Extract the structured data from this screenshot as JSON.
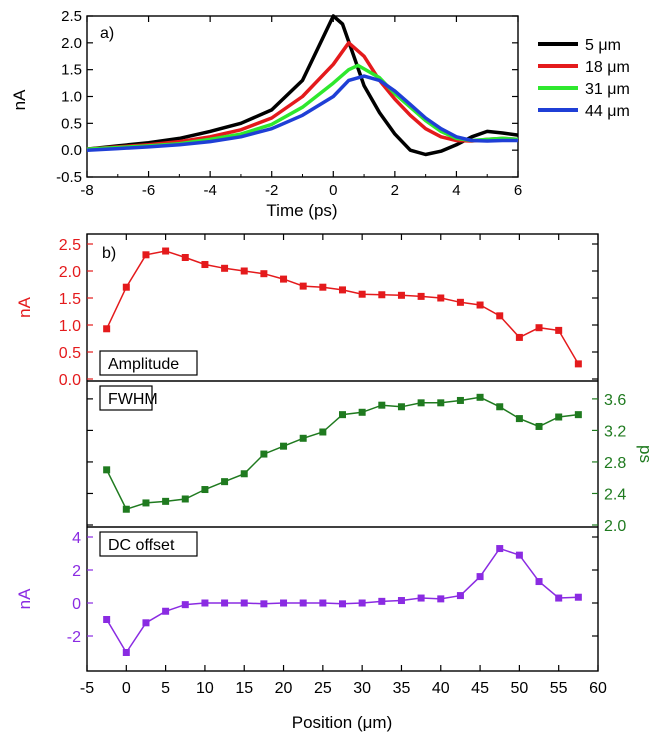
{
  "chart_data": [
    {
      "type": "line",
      "panel_label": "a)",
      "xlabel": "Time (ps)",
      "ylabel": "nA",
      "xlim": [
        -8,
        6
      ],
      "ylim": [
        -0.5,
        2.5
      ],
      "xticks": [
        "-8",
        "-6",
        "-4",
        "-2",
        "0",
        "2",
        "4",
        "6"
      ],
      "yticks": [
        "-0.5",
        "0.0",
        "0.5",
        "1.0",
        "1.5",
        "2.0",
        "2.5"
      ],
      "legend_position": "right",
      "series": [
        {
          "name": "5 μm",
          "color": "#000000",
          "x": [
            -8,
            -7,
            -6,
            -5,
            -4,
            -3,
            -2,
            -1,
            -0.5,
            0,
            0.3,
            0.7,
            1,
            1.5,
            2,
            2.5,
            3,
            3.5,
            4,
            4.5,
            5,
            5.5,
            6
          ],
          "values": [
            0.02,
            0.08,
            0.14,
            0.22,
            0.35,
            0.5,
            0.75,
            1.3,
            1.9,
            2.5,
            2.35,
            1.7,
            1.2,
            0.7,
            0.3,
            0.0,
            -0.08,
            -0.02,
            0.1,
            0.25,
            0.35,
            0.32,
            0.28
          ]
        },
        {
          "name": "18 μm",
          "color": "#e41a1c",
          "x": [
            -8,
            -7,
            -6,
            -5,
            -4,
            -3,
            -2,
            -1,
            0,
            0.5,
            1,
            1.5,
            2,
            2.5,
            3,
            3.5,
            4,
            4.5,
            5,
            5.5,
            6
          ],
          "values": [
            0.02,
            0.06,
            0.1,
            0.16,
            0.25,
            0.38,
            0.6,
            1.0,
            1.6,
            2.0,
            1.75,
            1.3,
            0.95,
            0.65,
            0.4,
            0.25,
            0.18,
            0.17,
            0.2,
            0.22,
            0.2
          ]
        },
        {
          "name": "31 μm",
          "color": "#2ee82e",
          "x": [
            -8,
            -7,
            -6,
            -5,
            -4,
            -3,
            -2,
            -1,
            0,
            0.5,
            0.8,
            1.5,
            2,
            2.5,
            3,
            3.5,
            4,
            4.5,
            5,
            5.5,
            6
          ],
          "values": [
            0.02,
            0.05,
            0.08,
            0.12,
            0.2,
            0.3,
            0.48,
            0.8,
            1.25,
            1.5,
            1.58,
            1.35,
            1.05,
            0.8,
            0.55,
            0.35,
            0.22,
            0.18,
            0.2,
            0.22,
            0.2
          ]
        },
        {
          "name": "44 μm",
          "color": "#1f3fd6",
          "x": [
            -8,
            -7,
            -6,
            -5,
            -4,
            -3,
            -2,
            -1,
            0,
            0.5,
            1,
            1.5,
            2,
            2.5,
            3,
            3.5,
            4,
            4.5,
            5,
            5.5,
            6
          ],
          "values": [
            0.0,
            0.03,
            0.06,
            0.1,
            0.16,
            0.25,
            0.4,
            0.65,
            1.0,
            1.3,
            1.38,
            1.3,
            1.1,
            0.85,
            0.6,
            0.4,
            0.25,
            0.18,
            0.17,
            0.18,
            0.18
          ]
        }
      ]
    },
    {
      "type": "line",
      "panel_label": "b)",
      "xlabel": "Position (μm)",
      "xlim": [
        -5,
        60
      ],
      "xticks": [
        "-5",
        "0",
        "5",
        "10",
        "15",
        "20",
        "25",
        "30",
        "35",
        "40",
        "45",
        "50",
        "55",
        "60"
      ],
      "x": [
        -2.5,
        0,
        2.5,
        5,
        7.5,
        10,
        12.5,
        15,
        17.5,
        20,
        22.5,
        25,
        27.5,
        30,
        32.5,
        35,
        37.5,
        40,
        42.5,
        45,
        47.5,
        50,
        52.5,
        55,
        57.5
      ],
      "panels": [
        {
          "label": "Amplitude",
          "ylabel": "nA",
          "axis_side": "left",
          "color": "#e41a1c",
          "ylim": [
            0.0,
            2.5
          ],
          "yticks": [
            "0.0",
            "0.5",
            "1.0",
            "1.5",
            "2.0",
            "2.5"
          ],
          "values": [
            0.93,
            1.7,
            2.3,
            2.37,
            2.25,
            2.12,
            2.05,
            2.0,
            1.95,
            1.85,
            1.72,
            1.7,
            1.65,
            1.57,
            1.56,
            1.55,
            1.53,
            1.5,
            1.42,
            1.37,
            1.17,
            0.77,
            0.95,
            0.9,
            0.28
          ]
        },
        {
          "label": "FWHM",
          "ylabel": "ps",
          "axis_side": "right",
          "color": "#1f7a1f",
          "ylim": [
            2.0,
            3.7
          ],
          "yticks": [
            "2.0",
            "2.4",
            "2.8",
            "3.2",
            "3.6"
          ],
          "values": [
            2.7,
            2.2,
            2.28,
            2.3,
            2.33,
            2.45,
            2.55,
            2.65,
            2.9,
            3.0,
            3.1,
            3.18,
            3.4,
            3.43,
            3.52,
            3.5,
            3.55,
            3.55,
            3.58,
            3.62,
            3.5,
            3.35,
            3.25,
            3.37,
            3.4
          ]
        },
        {
          "label": "DC offset",
          "ylabel": "nA",
          "axis_side": "left",
          "color": "#8a2be2",
          "ylim": [
            -4,
            4
          ],
          "yticks": [
            "-2",
            "0",
            "2",
            "4"
          ],
          "values": [
            -1.0,
            -3.0,
            -1.2,
            -0.5,
            -0.1,
            0.0,
            0.0,
            0.0,
            -0.05,
            0.0,
            0.0,
            0.0,
            -0.05,
            0.0,
            0.1,
            0.15,
            0.3,
            0.25,
            0.45,
            1.6,
            3.3,
            2.9,
            1.3,
            0.3,
            0.35
          ]
        }
      ]
    }
  ]
}
